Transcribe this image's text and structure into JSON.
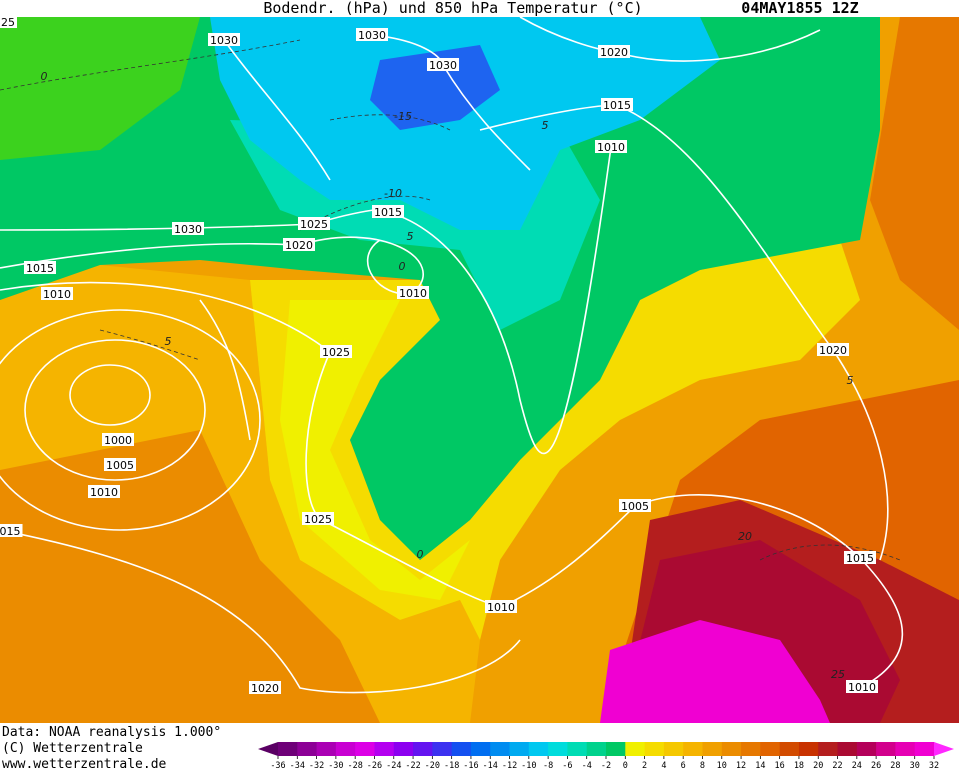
{
  "header": {
    "title": "Bodendr. (hPa) und 850 hPa Temperatur (°C)",
    "date": "04MAY1855 12Z"
  },
  "footer": {
    "source": "Data: NOAA reanalysis 1.000°",
    "copyright": "(C) Wetterzentrale",
    "url": "www.wetterzentrale.de"
  },
  "isobar_labels": [
    "25",
    "1030",
    "1030",
    "1030",
    "1020",
    "1015",
    "1010",
    "1015",
    "1025",
    "1020",
    "1030",
    "1015",
    "1010",
    "1010",
    "1025",
    "1020",
    "1000",
    "1005",
    "1010",
    "1025",
    "015",
    "1005",
    "1015",
    "1010",
    "1010",
    "1020"
  ],
  "temperature_labels": [
    "0",
    "-15",
    "5",
    "-10",
    "5",
    "0",
    "5",
    "5",
    "0",
    "20",
    "25"
  ],
  "legend": {
    "labels": [
      "-36",
      "-34",
      "-32",
      "-30",
      "-28",
      "-26",
      "-24",
      "-22",
      "-20",
      "-18",
      "-16",
      "-14",
      "-12",
      "-10",
      "-8",
      "-6",
      "-4",
      "-2",
      "0",
      "2",
      "4",
      "6",
      "8",
      "10",
      "12",
      "14",
      "16",
      "18",
      "20",
      "22",
      "24",
      "26",
      "28",
      "30",
      "32"
    ],
    "colors": [
      "#6e0078",
      "#8c0096",
      "#aa00b4",
      "#c800d2",
      "#dc00e6",
      "#b400f0",
      "#8c00f0",
      "#6414f0",
      "#3c32f0",
      "#1450f0",
      "#006ef0",
      "#008cf0",
      "#00aaf0",
      "#00c8f0",
      "#00dcdc",
      "#00dcb4",
      "#00d28c",
      "#00c864",
      "#f0f000",
      "#f5dc00",
      "#f5c800",
      "#f5b400",
      "#f0a000",
      "#eb8c00",
      "#e67800",
      "#e16400",
      "#d24b00",
      "#c83200",
      "#b41e1e",
      "#aa0a32",
      "#b4005a",
      "#d2008c",
      "#e600b4",
      "#f000d2"
    ],
    "under_color": "#5a0064",
    "over_color": "#ff28ff"
  }
}
